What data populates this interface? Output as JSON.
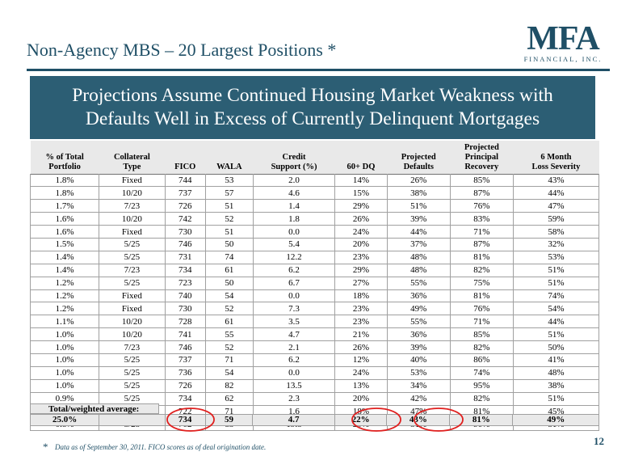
{
  "header": {
    "title": "Non-Agency MBS – 20 Largest Positions *",
    "logo_mark": "MFA",
    "logo_sub": "FINANCIAL, INC."
  },
  "banner": {
    "line1": "Projections Assume Continued Housing Market Weakness with",
    "line2": "Defaults Well in Excess of Currently Delinquent Mortgages"
  },
  "table": {
    "columns": [
      [
        "% of Total",
        "Portfolio"
      ],
      [
        "Collateral",
        "Type"
      ],
      [
        "",
        "FICO"
      ],
      [
        "",
        "WALA"
      ],
      [
        "Credit",
        "Support (%)"
      ],
      [
        "",
        "60+ DQ"
      ],
      [
        "Projected",
        "Defaults"
      ],
      [
        "Projected",
        "Principal",
        "Recovery"
      ],
      [
        "6 Month",
        "Loss Severity"
      ]
    ],
    "rows": [
      [
        "1.8%",
        "Fixed",
        "744",
        "53",
        "2.0",
        "14%",
        "26%",
        "85%",
        "43%"
      ],
      [
        "1.8%",
        "10/20",
        "737",
        "57",
        "4.6",
        "15%",
        "38%",
        "87%",
        "44%"
      ],
      [
        "1.7%",
        "7/23",
        "726",
        "51",
        "1.4",
        "29%",
        "51%",
        "76%",
        "47%"
      ],
      [
        "1.6%",
        "10/20",
        "742",
        "52",
        "1.8",
        "26%",
        "39%",
        "83%",
        "59%"
      ],
      [
        "1.6%",
        "Fixed",
        "730",
        "51",
        "0.0",
        "24%",
        "44%",
        "71%",
        "58%"
      ],
      [
        "1.5%",
        "5/25",
        "746",
        "50",
        "5.4",
        "20%",
        "37%",
        "87%",
        "32%"
      ],
      [
        "1.4%",
        "5/25",
        "731",
        "74",
        "12.2",
        "23%",
        "48%",
        "81%",
        "53%"
      ],
      [
        "1.4%",
        "7/23",
        "734",
        "61",
        "6.2",
        "29%",
        "48%",
        "82%",
        "51%"
      ],
      [
        "1.2%",
        "5/25",
        "723",
        "50",
        "6.7",
        "27%",
        "55%",
        "75%",
        "51%"
      ],
      [
        "1.2%",
        "Fixed",
        "740",
        "54",
        "0.0",
        "18%",
        "36%",
        "81%",
        "74%"
      ],
      [
        "1.2%",
        "Fixed",
        "730",
        "52",
        "7.3",
        "23%",
        "49%",
        "76%",
        "54%"
      ],
      [
        "1.1%",
        "10/20",
        "728",
        "61",
        "3.5",
        "23%",
        "55%",
        "71%",
        "44%"
      ],
      [
        "1.0%",
        "10/20",
        "741",
        "55",
        "4.7",
        "21%",
        "36%",
        "85%",
        "51%"
      ],
      [
        "1.0%",
        "7/23",
        "746",
        "52",
        "2.1",
        "26%",
        "39%",
        "82%",
        "50%"
      ],
      [
        "1.0%",
        "5/25",
        "737",
        "71",
        "6.2",
        "12%",
        "40%",
        "86%",
        "41%"
      ],
      [
        "1.0%",
        "5/25",
        "736",
        "54",
        "0.0",
        "24%",
        "53%",
        "74%",
        "48%"
      ],
      [
        "1.0%",
        "5/25",
        "726",
        "82",
        "13.5",
        "13%",
        "34%",
        "95%",
        "38%"
      ],
      [
        "0.9%",
        "5/25",
        "734",
        "62",
        "2.3",
        "20%",
        "42%",
        "82%",
        "51%"
      ],
      [
        "0.9%",
        "10/20",
        "722",
        "71",
        "1.6",
        "18%",
        "47%",
        "81%",
        "45%"
      ],
      [
        "0.8%",
        "5/25",
        "702",
        "83",
        "19.5",
        "29%",
        "51%",
        "90%",
        "51%"
      ]
    ],
    "total_label": "Total/weighted average:",
    "total_row": [
      "25.0%",
      "",
      "734",
      "59",
      "4.7",
      "22%",
      "43%",
      "81%",
      "49%"
    ]
  },
  "footnote": {
    "star": "*",
    "text": "Data as of September 30, 2011. FICO scores as of deal origination date."
  },
  "page_number": "12",
  "colors": {
    "accent": "#1f4f66",
    "banner": "#2c5e74",
    "header_fill": "#e9e9e9",
    "circle": "#e0201f"
  }
}
